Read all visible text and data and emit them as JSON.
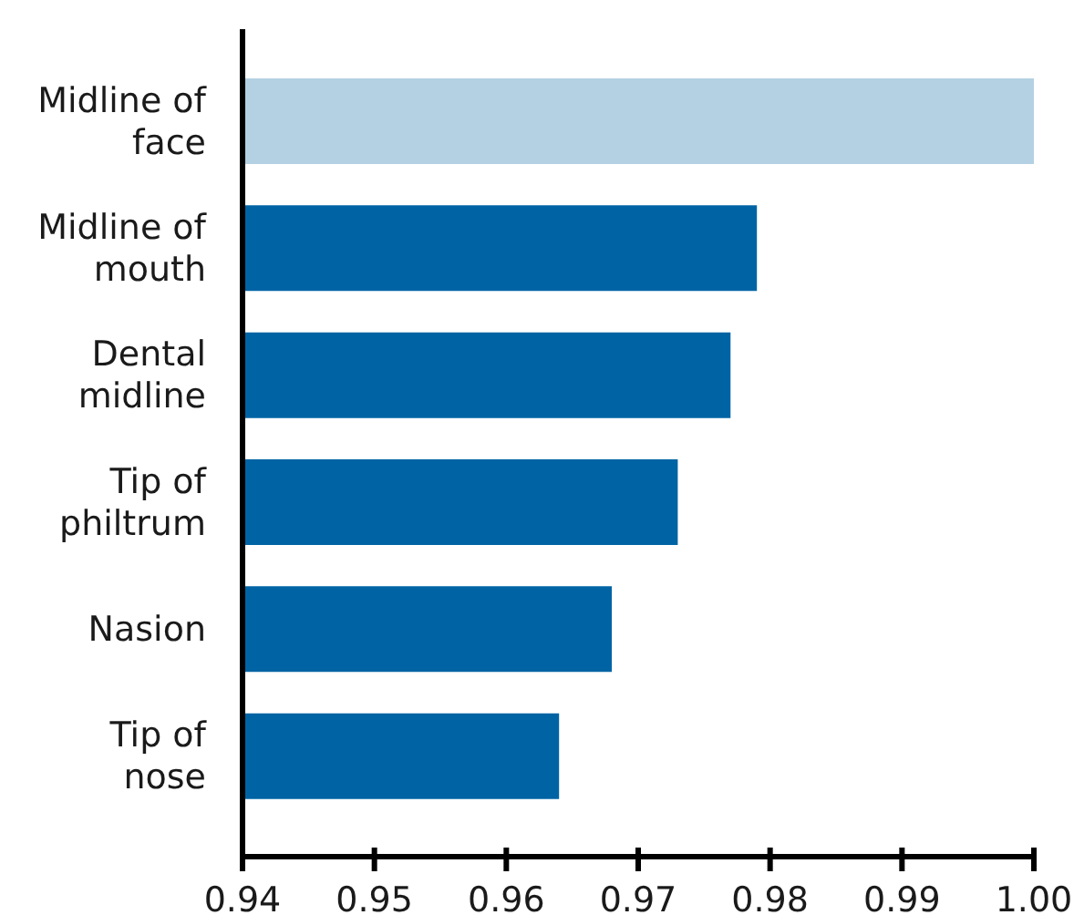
{
  "chart_data": {
    "type": "bar",
    "orientation": "horizontal",
    "categories": [
      "Midline of face",
      "Midline of mouth",
      "Dental midline",
      "Tip of philtrum",
      "Nasion",
      "Tip of nose"
    ],
    "values": [
      1.0,
      0.979,
      0.977,
      0.973,
      0.968,
      0.964
    ],
    "colors": [
      "#b3d1e2",
      "#0064a4",
      "#0064a4",
      "#0064a4",
      "#0064a4",
      "#0064a4"
    ],
    "xlim": [
      0.94,
      1.0
    ],
    "xticks": [
      0.94,
      0.95,
      0.96,
      0.97,
      0.98,
      0.99,
      "1.00"
    ],
    "grid": false
  }
}
